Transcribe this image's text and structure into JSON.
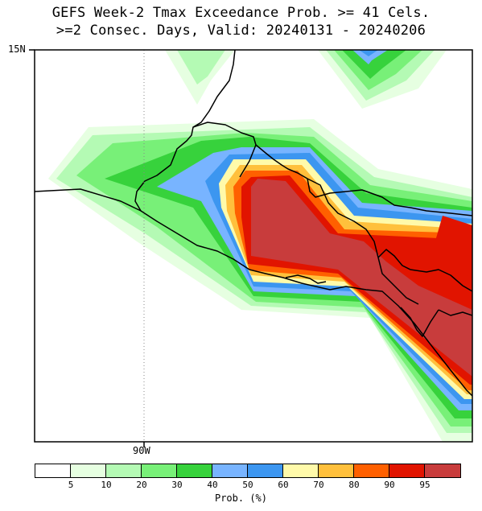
{
  "title": {
    "line1": "GEFS Week-2 Tmax Exceedance Prob. >= 41 Cels.",
    "line2": ">=2 Consec. Days, Valid: 20240131 - 20240206"
  },
  "map": {
    "lat_label": "15N",
    "lon_label": "90W"
  },
  "colorbar": {
    "colors": [
      "#ffffff",
      "#e6ffe1",
      "#b4fab4",
      "#78f078",
      "#37d23c",
      "#78b4ff",
      "#3c96f0",
      "#fffaaa",
      "#ffc03c",
      "#ff6000",
      "#e11400",
      "#c83c3c"
    ],
    "ticks": [
      "5",
      "10",
      "20",
      "30",
      "40",
      "50",
      "60",
      "70",
      "80",
      "90",
      "95"
    ],
    "unit": "Prob. (%)"
  }
}
